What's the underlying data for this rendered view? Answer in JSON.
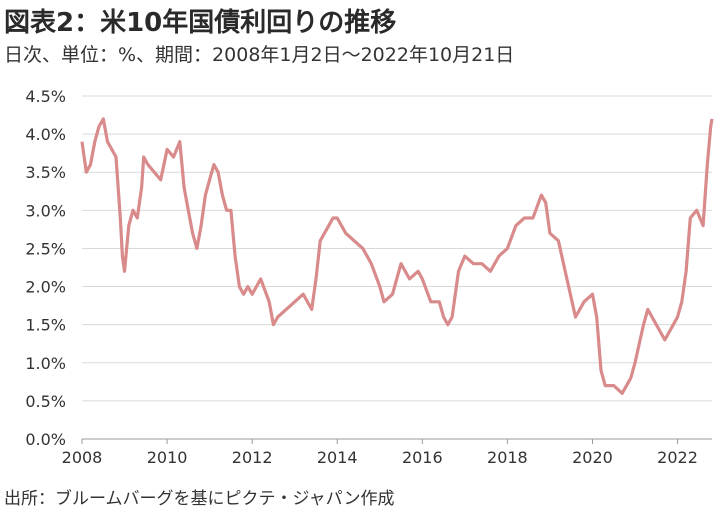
{
  "title": "図表2：米10年国債利回りの推移",
  "subtitle": "日次、単位：%、期間：2008年1月2日～2022年10月21日",
  "source": "出所：ブルームバーグを基にピクテ・ジャパン作成",
  "colors": {
    "line": "#d98a8a",
    "grid": "#d9d9d9",
    "axis": "#999999"
  },
  "chart_data": {
    "type": "line",
    "title": "",
    "xlabel": "",
    "ylabel": "",
    "xlim": [
      2008.0,
      2022.81
    ],
    "ylim": [
      0,
      4.5
    ],
    "grid": true,
    "y_ticks": [
      0,
      0.5,
      1.0,
      1.5,
      2.0,
      2.5,
      3.0,
      3.5,
      4.0,
      4.5
    ],
    "y_tick_labels": [
      "0.0%",
      "0.5%",
      "1.0%",
      "1.5%",
      "2.0%",
      "2.5%",
      "3.0%",
      "3.5%",
      "4.0%",
      "4.5%"
    ],
    "x_ticks": [
      2008,
      2010,
      2012,
      2014,
      2016,
      2018,
      2020,
      2022
    ],
    "x_tick_labels": [
      "2008",
      "2010",
      "2012",
      "2014",
      "2016",
      "2018",
      "2020",
      "2022"
    ],
    "series": [
      {
        "name": "",
        "x": [
          2008.0,
          2008.1,
          2008.2,
          2008.3,
          2008.4,
          2008.5,
          2008.6,
          2008.7,
          2008.8,
          2008.9,
          2008.95,
          2009.0,
          2009.1,
          2009.2,
          2009.3,
          2009.4,
          2009.45,
          2009.55,
          2009.7,
          2009.85,
          2010.0,
          2010.15,
          2010.3,
          2010.4,
          2010.5,
          2010.6,
          2010.7,
          2010.8,
          2010.9,
          2011.0,
          2011.1,
          2011.2,
          2011.3,
          2011.4,
          2011.5,
          2011.6,
          2011.7,
          2011.8,
          2011.9,
          2012.0,
          2012.2,
          2012.4,
          2012.5,
          2012.6,
          2012.8,
          2013.0,
          2013.2,
          2013.4,
          2013.5,
          2013.6,
          2013.7,
          2013.9,
          2014.0,
          2014.2,
          2014.4,
          2014.6,
          2014.8,
          2015.0,
          2015.1,
          2015.3,
          2015.5,
          2015.7,
          2015.9,
          2016.0,
          2016.2,
          2016.4,
          2016.5,
          2016.6,
          2016.7,
          2016.85,
          2017.0,
          2017.2,
          2017.4,
          2017.6,
          2017.8,
          2018.0,
          2018.2,
          2018.4,
          2018.6,
          2018.8,
          2018.9,
          2019.0,
          2019.2,
          2019.4,
          2019.6,
          2019.8,
          2020.0,
          2020.1,
          2020.2,
          2020.3,
          2020.5,
          2020.7,
          2020.9,
          2021.0,
          2021.2,
          2021.3,
          2021.5,
          2021.7,
          2021.9,
          2022.0,
          2022.1,
          2022.2,
          2022.3,
          2022.45,
          2022.6,
          2022.7,
          2022.78,
          2022.81
        ],
        "values": [
          3.9,
          3.5,
          3.6,
          3.9,
          4.1,
          4.2,
          3.9,
          3.8,
          3.7,
          2.9,
          2.4,
          2.2,
          2.8,
          3.0,
          2.9,
          3.3,
          3.7,
          3.6,
          3.5,
          3.4,
          3.8,
          3.7,
          3.9,
          3.3,
          3.0,
          2.7,
          2.5,
          2.8,
          3.2,
          3.4,
          3.6,
          3.5,
          3.2,
          3.0,
          3.0,
          2.4,
          2.0,
          1.9,
          2.0,
          1.9,
          2.1,
          1.8,
          1.5,
          1.6,
          1.7,
          1.8,
          1.9,
          1.7,
          2.1,
          2.6,
          2.7,
          2.9,
          2.9,
          2.7,
          2.6,
          2.5,
          2.3,
          2.0,
          1.8,
          1.9,
          2.3,
          2.1,
          2.2,
          2.1,
          1.8,
          1.8,
          1.6,
          1.5,
          1.6,
          2.2,
          2.4,
          2.3,
          2.3,
          2.2,
          2.4,
          2.5,
          2.8,
          2.9,
          2.9,
          3.2,
          3.1,
          2.7,
          2.6,
          2.1,
          1.6,
          1.8,
          1.9,
          1.6,
          0.9,
          0.7,
          0.7,
          0.6,
          0.8,
          1.0,
          1.5,
          1.7,
          1.5,
          1.3,
          1.5,
          1.6,
          1.8,
          2.2,
          2.9,
          3.0,
          2.8,
          3.6,
          4.1,
          4.2
        ]
      }
    ]
  }
}
